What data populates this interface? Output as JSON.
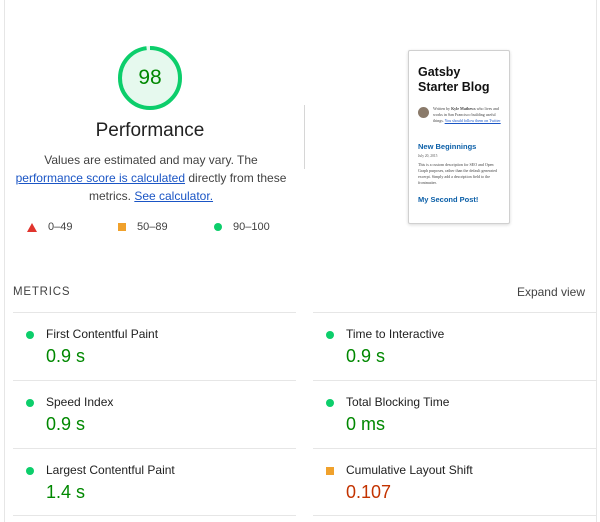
{
  "summary": {
    "score": "98",
    "score_fraction": 0.98,
    "score_color": "#0cce6b",
    "title": "Performance",
    "desc_line1": "Values are estimated and may vary. The",
    "desc_link1": "performance score is calculated",
    "desc_line2_rest": " directly from these",
    "desc_line3_start": "metrics. ",
    "desc_link2": "See calculator."
  },
  "legend": [
    {
      "icon": "triangle",
      "color": "#e0342d",
      "label": "0–49"
    },
    {
      "icon": "square",
      "color": "#f0a12c",
      "label": "50–89"
    },
    {
      "icon": "circle",
      "color": "#0cce6b",
      "label": "90–100"
    }
  ],
  "thumbnail": {
    "title": "Gatsby Starter Blog",
    "bio_prefix": "Written by ",
    "bio_name": "Kyle Mathews",
    "bio_rest": " who lives and works in San Francisco building useful things. ",
    "bio_link": "You should follow them on Twitter",
    "post1_title": "New Beginnings",
    "post1_date": "July 20, 2015",
    "post1_desc": "This is a custom description for SEO and Open Graph purposes, rather than the default generated excerpt. Simply add a description field to the frontmatter.",
    "post2_title": "My Second Post!"
  },
  "metrics": {
    "header": "METRICS",
    "expand_label": "Expand view",
    "items": [
      {
        "name": "First Contentful Paint",
        "value": "0.9 s",
        "status": "pass"
      },
      {
        "name": "Time to Interactive",
        "value": "0.9 s",
        "status": "pass"
      },
      {
        "name": "Speed Index",
        "value": "0.9 s",
        "status": "pass"
      },
      {
        "name": "Total Blocking Time",
        "value": "0 ms",
        "status": "pass"
      },
      {
        "name": "Largest Contentful Paint",
        "value": "1.4 s",
        "status": "pass"
      },
      {
        "name": "Cumulative Layout Shift",
        "value": "0.107",
        "status": "average"
      }
    ]
  }
}
